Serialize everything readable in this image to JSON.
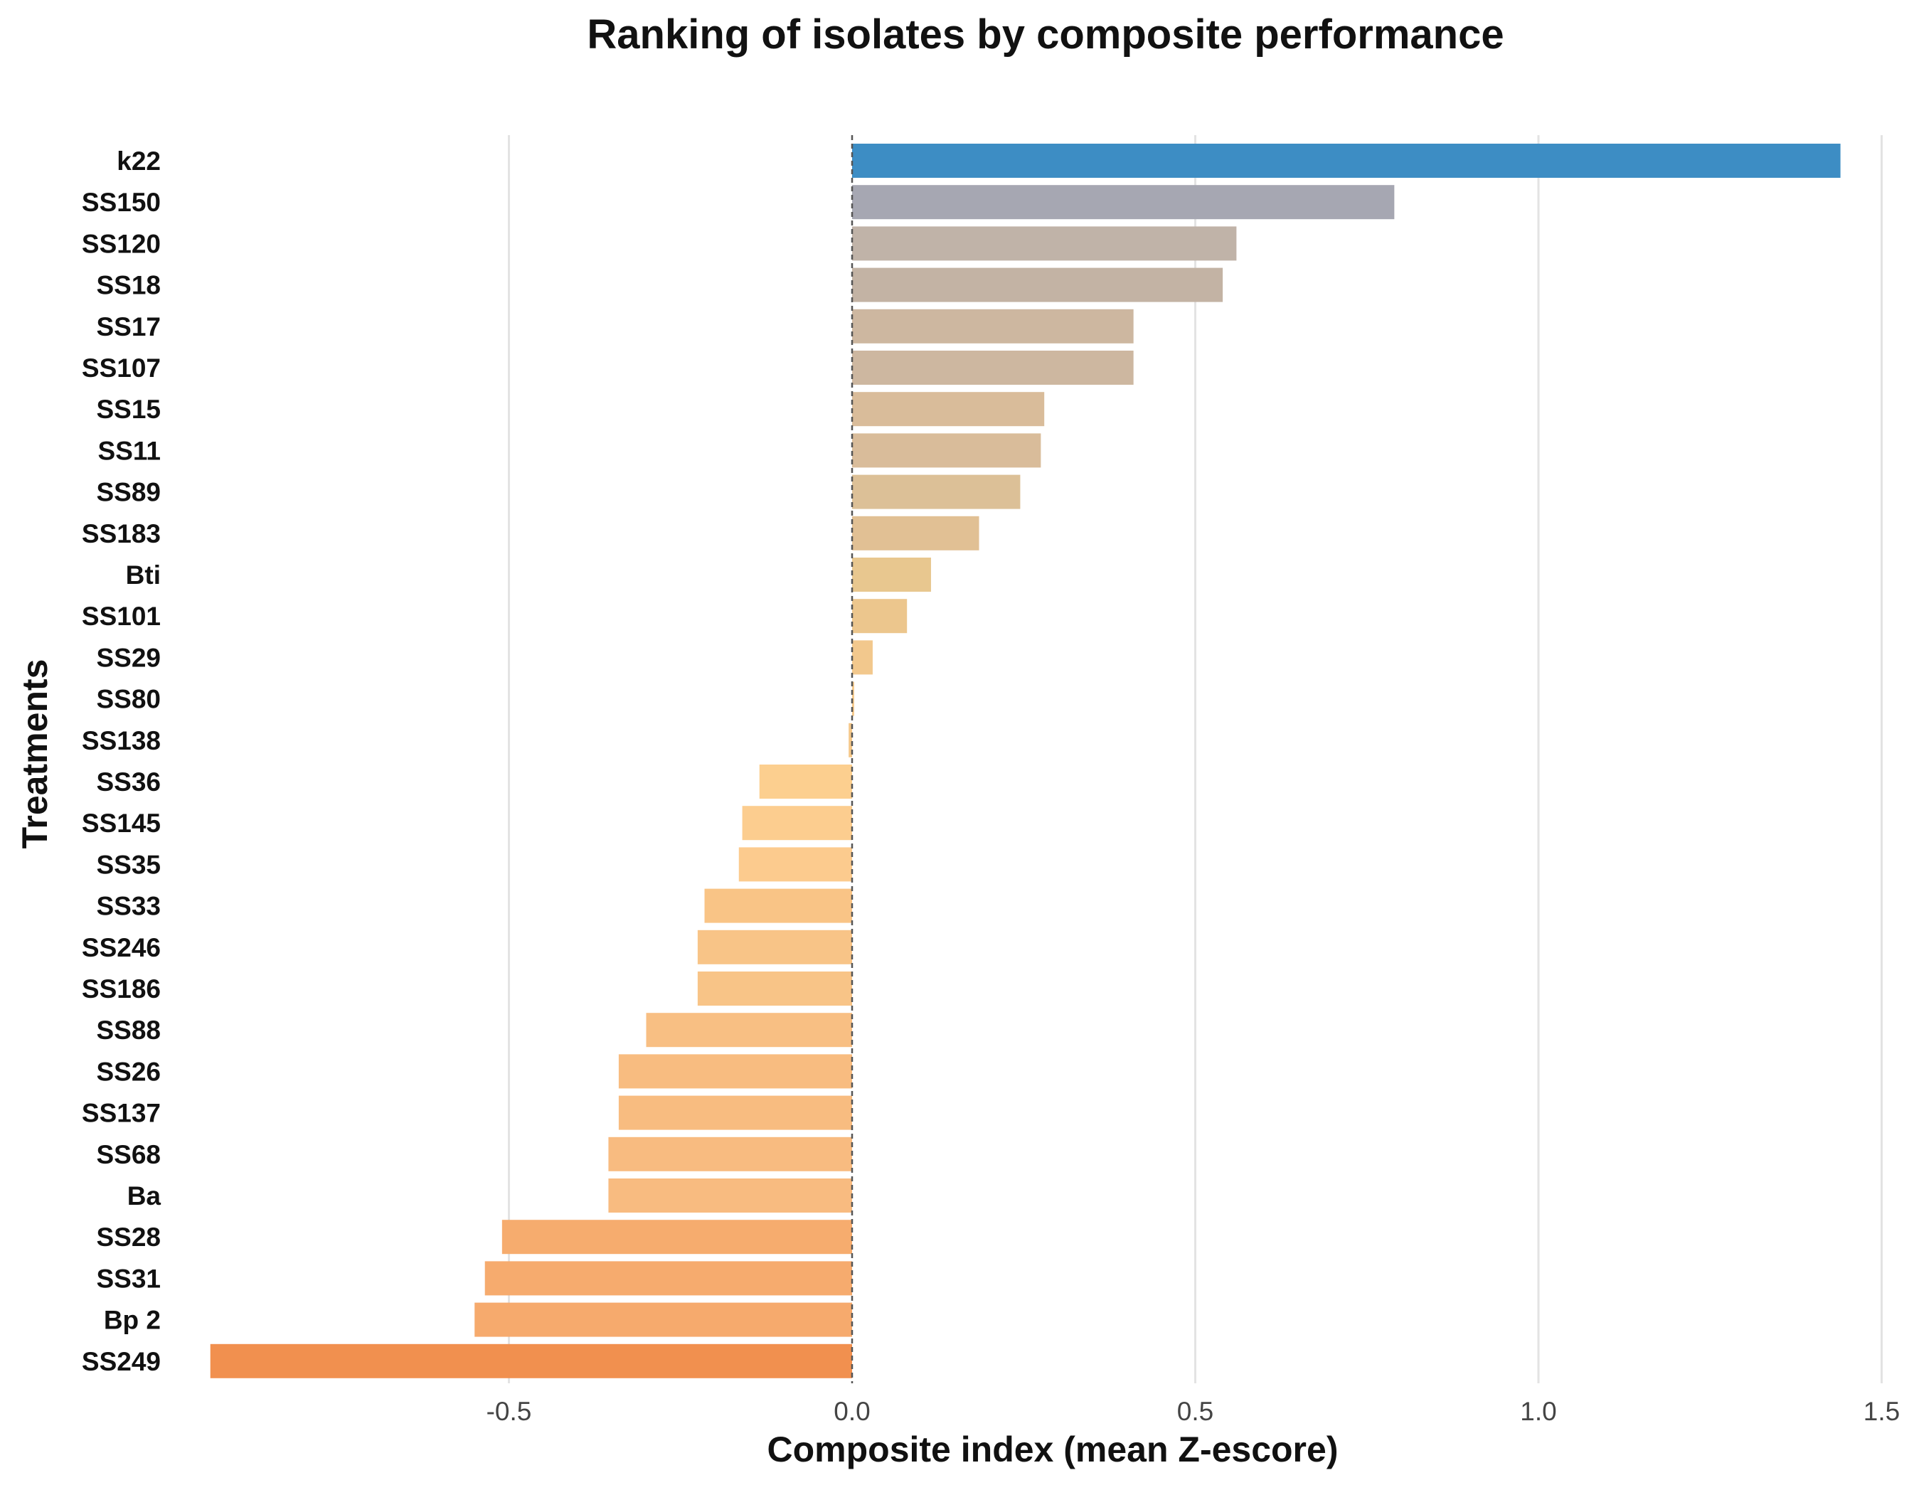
{
  "chart_data": {
    "type": "bar",
    "orientation": "horizontal",
    "title": "Ranking of isolates by composite performance",
    "xlabel": "Composite index (mean Z-escore)",
    "ylabel": "Treatments",
    "xlim": [
      -0.98,
      1.5
    ],
    "xticks": [
      -0.5,
      0.0,
      0.5,
      1.0,
      1.5
    ],
    "xtick_labels": [
      "-0.5",
      "0.0",
      "0.5",
      "1.0",
      "1.5"
    ],
    "grid": true,
    "zero_line": "dashed",
    "categories": [
      "k22",
      "SS150",
      "SS120",
      "SS18",
      "SS17",
      "SS107",
      "SS15",
      "SS11",
      "SS89",
      "SS183",
      "Bti",
      "SS101",
      "SS29",
      "SS80",
      "SS138",
      "SS36",
      "SS145",
      "SS35",
      "SS33",
      "SS246",
      "SS186",
      "SS88",
      "SS26",
      "SS137",
      "SS68",
      "Ba",
      "SS28",
      "SS31",
      "Bp 2",
      "SS249"
    ],
    "values": [
      1.44,
      0.79,
      0.56,
      0.54,
      0.41,
      0.41,
      0.28,
      0.275,
      0.245,
      0.185,
      0.115,
      0.08,
      0.03,
      0.003,
      -0.005,
      -0.135,
      -0.16,
      -0.165,
      -0.215,
      -0.225,
      -0.225,
      -0.3,
      -0.34,
      -0.34,
      -0.355,
      -0.355,
      -0.51,
      -0.535,
      -0.55,
      -0.935
    ],
    "colors": [
      "#3d8dc4",
      "#a6a7b2",
      "#c0b3a8",
      "#c3b3a4",
      "#cdb7a0",
      "#cdb7a0",
      "#d9bc9a",
      "#d9bc9a",
      "#dcc097",
      "#e1c094",
      "#e8c78f",
      "#ecc68d",
      "#f2c88d",
      "#f5c88a",
      "#f5c88a",
      "#fccf8f",
      "#fccd8f",
      "#fccb8e",
      "#f9c486",
      "#f8c487",
      "#f8c487",
      "#f8bf83",
      "#f8bc80",
      "#f8bc80",
      "#f8bb80",
      "#f8bb80",
      "#f6ac6e",
      "#f6ab6e",
      "#f6aa6d",
      "#f1904f"
    ]
  }
}
